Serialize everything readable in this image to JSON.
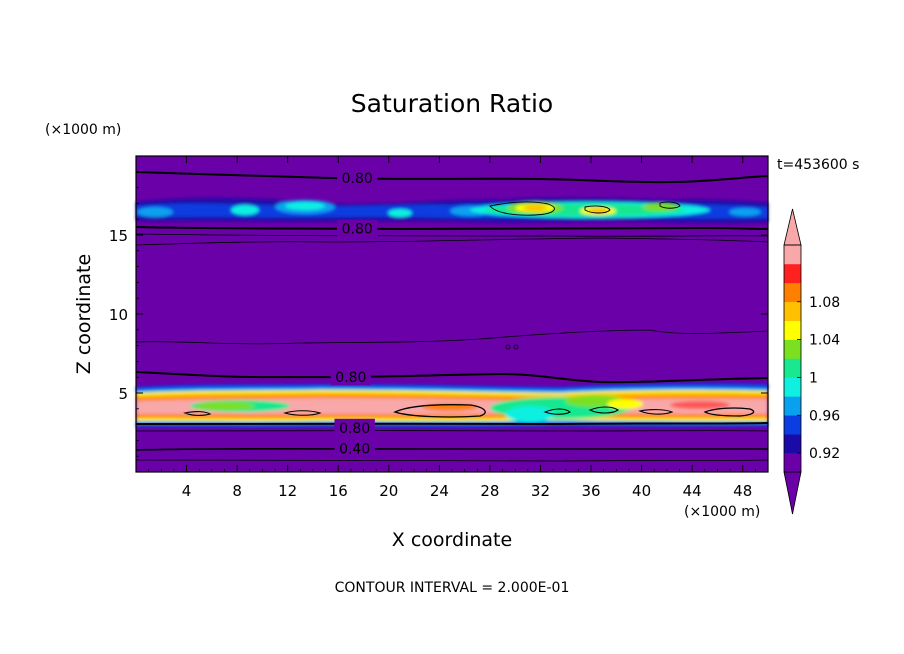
{
  "chart_data": {
    "type": "heatmap",
    "title": "Saturation Ratio",
    "xlabel": "X coordinate",
    "ylabel": "Z coordinate",
    "x_unit": "(×1000 m)",
    "y_unit": "(×1000 m)",
    "time_label": "t=453600 s",
    "footer": "CONTOUR INTERVAL = 2.000E-01",
    "xlim": [
      0,
      50
    ],
    "ylim": [
      0,
      20
    ],
    "x_ticks": [
      4,
      8,
      12,
      16,
      20,
      24,
      28,
      32,
      36,
      40,
      44,
      48
    ],
    "y_ticks": [
      5,
      10,
      15
    ],
    "colorbar": {
      "labels": [
        "0.92",
        "0.96",
        "1",
        "1.04",
        "1.08"
      ],
      "levels": [
        0.9,
        0.92,
        0.94,
        0.96,
        0.98,
        1.0,
        1.02,
        1.04,
        1.06,
        1.08,
        1.1
      ],
      "colors": [
        "#6a00a8",
        "#1a0aa8",
        "#0a3ee0",
        "#0aa0f0",
        "#10f0e0",
        "#18e890",
        "#7ae020",
        "#ffff00",
        "#ffc000",
        "#ff8000",
        "#ff2020",
        "#f8a8a8"
      ]
    },
    "contour_labels": [
      {
        "text": "0.80",
        "x": 17.5,
        "z": 18.6
      },
      {
        "text": "0.80",
        "x": 17.5,
        "z": 15.4
      },
      {
        "text": "0.80",
        "x": 17.0,
        "z": 6.0
      },
      {
        "text": "0.80",
        "x": 17.3,
        "z": 2.8
      },
      {
        "text": "0.40",
        "x": 17.3,
        "z": 1.5
      }
    ]
  }
}
